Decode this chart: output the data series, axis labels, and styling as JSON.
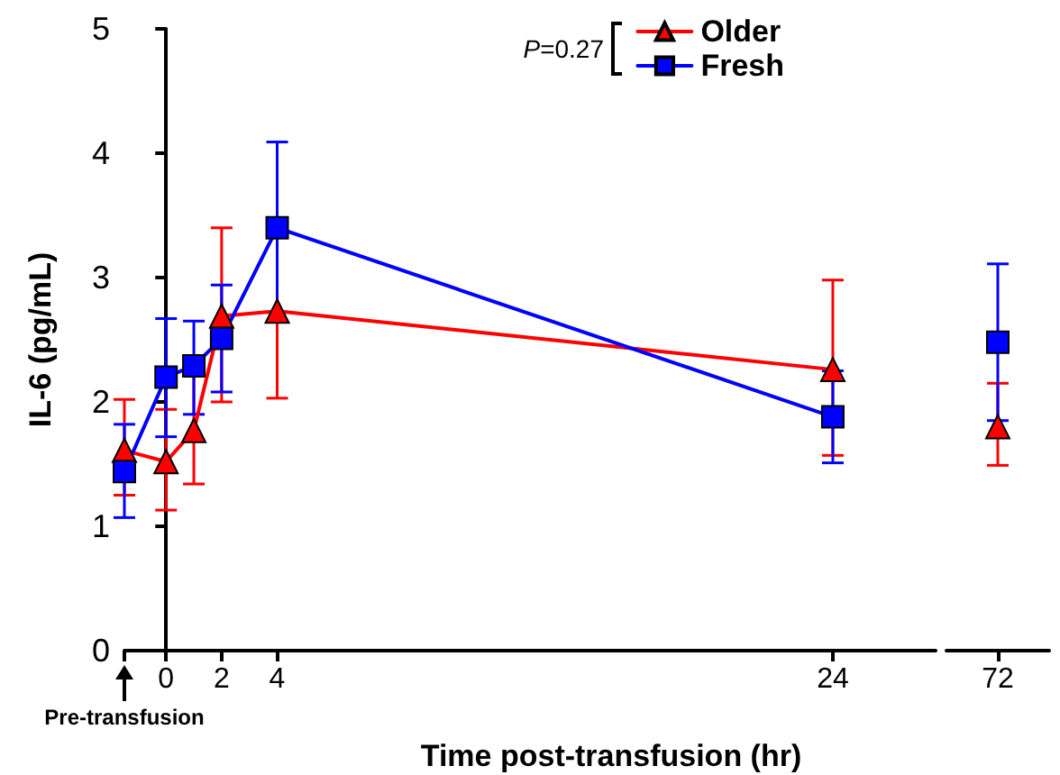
{
  "chart_data": [
    {
      "type": "line",
      "xlabel": "Time post-transfusion (hr)",
      "ylabel": "IL-6 (pg/mL)",
      "annotations": [
        "P=0.27",
        "Pre-transfusion"
      ],
      "x": [
        -1.5,
        0,
        1,
        2,
        4,
        24
      ],
      "xlim": [
        -1.5,
        27.7
      ],
      "xticks": [
        {
          "value": -1.5,
          "label": null
        },
        0,
        2,
        4,
        24
      ],
      "ylim": [
        0,
        5
      ],
      "yticks": [
        0,
        1,
        2,
        3,
        4,
        5
      ],
      "grid": false,
      "legend": "top right",
      "series": [
        {
          "name": "Older",
          "color": "#ff0000",
          "marker": "triangle",
          "values": [
            1.61,
            1.52,
            1.77,
            2.69,
            2.73,
            2.26
          ],
          "errors": [
            [
              1.25,
              2.02
            ],
            [
              1.13,
              1.94
            ],
            [
              1.34,
              2.23
            ],
            [
              2.0,
              3.4
            ],
            [
              2.03,
              3.45
            ],
            [
              1.57,
              2.98
            ]
          ]
        },
        {
          "name": "Fresh",
          "color": "#0000ff",
          "marker": "square",
          "values": [
            1.44,
            2.2,
            2.29,
            2.51,
            3.4,
            1.88
          ],
          "errors": [
            [
              1.07,
              1.82
            ],
            [
              1.72,
              2.67
            ],
            [
              1.9,
              2.65
            ],
            [
              2.08,
              2.94
            ],
            [
              2.72,
              4.09
            ],
            [
              1.51,
              2.25
            ]
          ]
        }
      ]
    },
    {
      "type": "line",
      "categories": [
        "72"
      ],
      "ylim": [
        0,
        5
      ],
      "tick_labels": "x",
      "grid": false,
      "series": [
        {
          "color": "#ff0000",
          "marker": "triangle",
          "values": [
            1.8
          ],
          "errors": [
            [
              1.49,
              2.15
            ]
          ]
        },
        {
          "color": "#0000ff",
          "marker": "square",
          "values": [
            2.48
          ],
          "errors": [
            [
              1.85,
              3.11
            ]
          ]
        }
      ]
    }
  ]
}
